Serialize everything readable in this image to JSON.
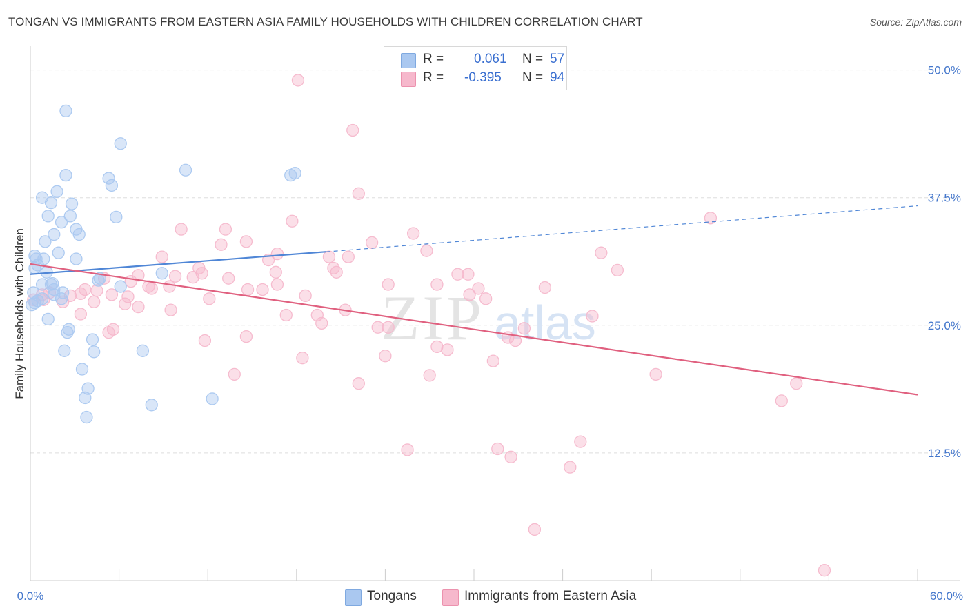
{
  "title": "TONGAN VS IMMIGRANTS FROM EASTERN ASIA FAMILY HOUSEHOLDS WITH CHILDREN CORRELATION CHART",
  "source": "Source: ZipAtlas.com",
  "watermark": {
    "zip": "ZIP",
    "atlas": "atlas"
  },
  "stats": {
    "tongans": {
      "r_label": "R =",
      "r_value": "0.061",
      "n_label": "N =",
      "n_value": "57",
      "color": "#aac8f0"
    },
    "immigrants": {
      "r_label": "R =",
      "r_value": "-0.395",
      "n_label": "N =",
      "n_value": "94",
      "color": "#f6b8cc"
    }
  },
  "legend": {
    "tongans": "Tongans",
    "immigrants": "Immigrants from Eastern Asia"
  },
  "chart_data": {
    "type": "scatter",
    "title": "TONGAN VS IMMIGRANTS FROM EASTERN ASIA FAMILY HOUSEHOLDS WITH CHILDREN CORRELATION CHART",
    "xlabel": "",
    "ylabel": "Family Households with Children",
    "xlim": [
      0,
      60
    ],
    "ylim": [
      0,
      52
    ],
    "x_tick_labels": [
      "0.0%",
      "60.0%"
    ],
    "y_ticks": [
      {
        "value": 12.5,
        "label": "12.5%"
      },
      {
        "value": 25.0,
        "label": "25.0%"
      },
      {
        "value": 37.5,
        "label": "37.5%"
      },
      {
        "value": 50.0,
        "label": "50.0%"
      }
    ],
    "grid": "horizontal dashed",
    "series": [
      {
        "name": "Tongans",
        "color": "#4f86d6",
        "fill": "#aac8f0",
        "trend": {
          "x0": 0,
          "y0": 30.0,
          "x1": 20.0,
          "y1": 32.2,
          "dashed_to_x": 60,
          "dashed_to_y": 36.7
        },
        "points": [
          [
            2.4,
            46.0
          ],
          [
            6.1,
            42.8
          ],
          [
            2.4,
            39.7
          ],
          [
            1.8,
            38.1
          ],
          [
            0.8,
            37.5
          ],
          [
            1.4,
            37.0
          ],
          [
            2.8,
            36.9
          ],
          [
            5.3,
            39.4
          ],
          [
            5.5,
            38.7
          ],
          [
            10.5,
            40.2
          ],
          [
            17.6,
            39.7
          ],
          [
            17.9,
            39.9
          ],
          [
            1.2,
            35.7
          ],
          [
            2.7,
            35.7
          ],
          [
            5.8,
            35.6
          ],
          [
            2.1,
            35.1
          ],
          [
            3.1,
            34.4
          ],
          [
            1.6,
            33.9
          ],
          [
            3.3,
            33.9
          ],
          [
            1.0,
            33.2
          ],
          [
            0.3,
            31.8
          ],
          [
            0.4,
            31.5
          ],
          [
            0.9,
            31.5
          ],
          [
            3.1,
            31.5
          ],
          [
            0.5,
            30.9
          ],
          [
            1.9,
            32.1
          ],
          [
            0.3,
            30.6
          ],
          [
            1.1,
            30.2
          ],
          [
            8.9,
            30.1
          ],
          [
            4.6,
            29.4
          ],
          [
            4.7,
            29.6
          ],
          [
            1.4,
            29.0
          ],
          [
            0.8,
            29.0
          ],
          [
            1.5,
            29.1
          ],
          [
            6.1,
            28.8
          ],
          [
            1.6,
            28.5
          ],
          [
            2.2,
            28.2
          ],
          [
            0.2,
            28.2
          ],
          [
            0.8,
            27.6
          ],
          [
            0.5,
            27.4
          ],
          [
            0.3,
            27.2
          ],
          [
            2.1,
            27.6
          ],
          [
            1.2,
            25.6
          ],
          [
            2.6,
            24.6
          ],
          [
            2.5,
            24.3
          ],
          [
            4.2,
            23.6
          ],
          [
            2.3,
            22.5
          ],
          [
            7.6,
            22.5
          ],
          [
            4.3,
            22.4
          ],
          [
            3.5,
            20.7
          ],
          [
            3.9,
            18.8
          ],
          [
            3.7,
            17.9
          ],
          [
            8.2,
            17.2
          ],
          [
            12.3,
            17.8
          ],
          [
            3.8,
            16.0
          ],
          [
            0.1,
            27.0
          ],
          [
            1.6,
            28.0
          ]
        ]
      },
      {
        "name": "Immigrants from Eastern Asia",
        "color": "#e0607f",
        "fill": "#f6b8cc",
        "trend": {
          "x0": 0,
          "y0": 31.0,
          "x1": 60,
          "y1": 18.2
        },
        "points": [
          [
            18.1,
            49.0
          ],
          [
            21.8,
            44.1
          ],
          [
            22.2,
            37.9
          ],
          [
            17.7,
            35.2
          ],
          [
            46.0,
            35.5
          ],
          [
            10.2,
            34.4
          ],
          [
            13.2,
            34.4
          ],
          [
            25.9,
            34.0
          ],
          [
            14.6,
            33.2
          ],
          [
            23.1,
            33.1
          ],
          [
            12.9,
            32.9
          ],
          [
            26.8,
            32.3
          ],
          [
            8.9,
            31.7
          ],
          [
            16.7,
            32.0
          ],
          [
            20.2,
            31.7
          ],
          [
            21.5,
            31.7
          ],
          [
            38.6,
            32.1
          ],
          [
            16.1,
            31.4
          ],
          [
            11.4,
            30.6
          ],
          [
            20.5,
            30.6
          ],
          [
            16.6,
            30.2
          ],
          [
            20.7,
            30.2
          ],
          [
            39.7,
            30.4
          ],
          [
            11.6,
            30.1
          ],
          [
            28.9,
            30.0
          ],
          [
            29.6,
            30.0
          ],
          [
            7.3,
            29.9
          ],
          [
            11.0,
            29.7
          ],
          [
            9.8,
            29.8
          ],
          [
            5.0,
            29.6
          ],
          [
            13.4,
            29.6
          ],
          [
            16.7,
            29.0
          ],
          [
            24.2,
            29.0
          ],
          [
            27.5,
            29.0
          ],
          [
            6.8,
            29.3
          ],
          [
            9.4,
            28.8
          ],
          [
            4.5,
            28.4
          ],
          [
            8.0,
            28.8
          ],
          [
            14.7,
            28.5
          ],
          [
            15.7,
            28.5
          ],
          [
            8.2,
            28.6
          ],
          [
            3.7,
            28.5
          ],
          [
            30.3,
            28.6
          ],
          [
            34.8,
            28.7
          ],
          [
            29.7,
            28.0
          ],
          [
            5.5,
            28.0
          ],
          [
            18.6,
            27.9
          ],
          [
            30.8,
            27.6
          ],
          [
            2.7,
            27.9
          ],
          [
            3.4,
            28.1
          ],
          [
            6.6,
            27.8
          ],
          [
            1.3,
            28.2
          ],
          [
            0.8,
            28.0
          ],
          [
            0.9,
            27.5
          ],
          [
            2.2,
            27.3
          ],
          [
            12.1,
            27.6
          ],
          [
            4.3,
            27.3
          ],
          [
            6.4,
            27.1
          ],
          [
            7.3,
            26.8
          ],
          [
            9.5,
            26.5
          ],
          [
            3.4,
            26.1
          ],
          [
            19.4,
            26.0
          ],
          [
            21.3,
            26.5
          ],
          [
            17.3,
            26.0
          ],
          [
            38.0,
            25.9
          ],
          [
            19.7,
            25.2
          ],
          [
            5.6,
            24.6
          ],
          [
            5.3,
            24.3
          ],
          [
            23.5,
            24.8
          ],
          [
            24.2,
            24.8
          ],
          [
            33.4,
            24.7
          ],
          [
            14.6,
            23.9
          ],
          [
            11.8,
            23.5
          ],
          [
            32.8,
            23.5
          ],
          [
            32.3,
            23.8
          ],
          [
            27.5,
            22.9
          ],
          [
            28.2,
            22.6
          ],
          [
            24.0,
            22.0
          ],
          [
            18.4,
            21.8
          ],
          [
            31.3,
            21.5
          ],
          [
            13.8,
            20.2
          ],
          [
            27.0,
            20.1
          ],
          [
            42.3,
            20.2
          ],
          [
            22.2,
            19.3
          ],
          [
            51.8,
            19.3
          ],
          [
            50.8,
            17.6
          ],
          [
            25.5,
            12.8
          ],
          [
            31.6,
            12.9
          ],
          [
            32.5,
            12.1
          ],
          [
            37.2,
            13.6
          ],
          [
            36.5,
            11.1
          ],
          [
            34.1,
            5.0
          ],
          [
            53.7,
            1.0
          ],
          [
            0.2,
            27.5
          ]
        ]
      }
    ]
  }
}
